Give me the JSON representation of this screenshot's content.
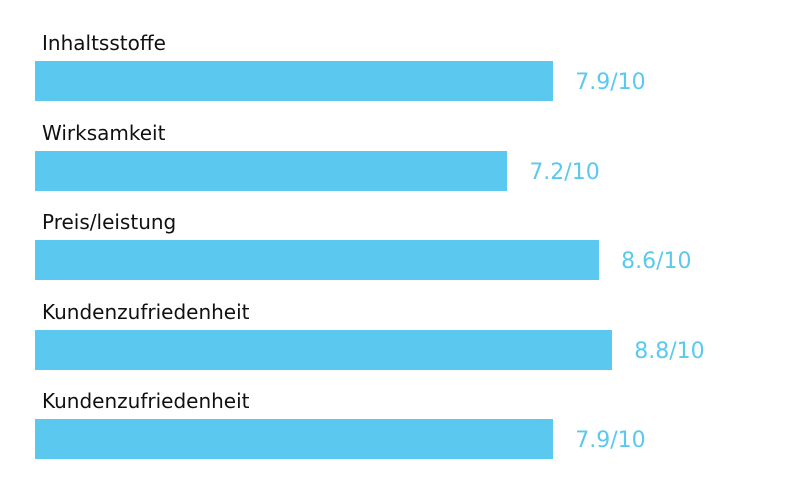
{
  "chart_data": {
    "type": "bar",
    "orientation": "horizontal",
    "categories": [
      "Inhaltsstoffe",
      "Wirksamkeit",
      "Preis/leistung",
      "Kundenzufriedenheit",
      "Kundenzufriedenheit"
    ],
    "values": [
      7.9,
      7.2,
      8.6,
      8.8,
      7.9
    ],
    "value_labels": [
      "7.9/10",
      "7.2/10",
      "8.6/10",
      "8.8/10",
      "7.9/10"
    ],
    "xlim": [
      0,
      10
    ],
    "title": "",
    "xlabel": "",
    "ylabel": "",
    "grid": false,
    "legend": "none",
    "bar_color": "#5bc8ef",
    "value_label_color": "#5bc8ef",
    "category_label_color": "#111111"
  }
}
